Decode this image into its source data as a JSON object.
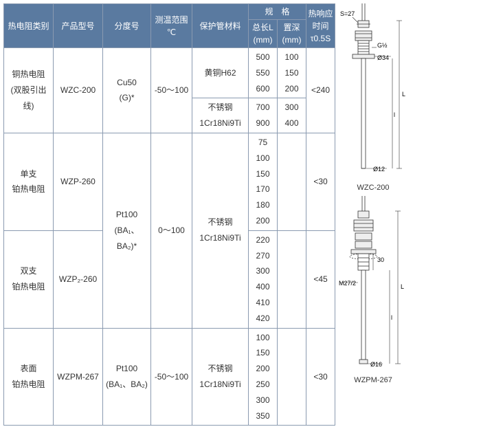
{
  "header": {
    "type": "热电阻类别",
    "model": "产品型号",
    "grade": "分度号",
    "range": "测温范围\n℃",
    "material": "保护管材料",
    "spec": "规　格",
    "len": "总长L\n(mm)",
    "depth": "置深\n(mm)",
    "time": "热响应\n时间\nτ0.5S"
  },
  "rows": [
    {
      "type": "铜热电阻\n(双股引出线)",
      "model": "WZC-200",
      "grade": "Cu50\n(G)*",
      "range": "-50～100",
      "matA": "黄铜H62",
      "lenA": "500\n550\n600",
      "depthA": "100\n150\n200",
      "matB": "不锈钢\n1Cr18Ni9Ti",
      "lenB": "700\n900",
      "depthB": "300\n400",
      "time": "<240"
    },
    {
      "type": "单支\n铂热电阻",
      "model": "WZP-260",
      "grade": "Pt100\n(BA₁、BA₂)*",
      "range": "0～100",
      "mat": "不锈钢\n1Cr18Ni9Ti",
      "len": "75\n100\n150\n170\n180\n200",
      "depth": "",
      "time": "<30"
    },
    {
      "type": "双支\n铂热电阻",
      "model": "WZP₂-260",
      "len": "220\n270\n300\n400\n410\n420",
      "depth": "",
      "time": "<45"
    },
    {
      "type": "表面\n铂热电阻",
      "model": "WZPM-267",
      "grade": "Pt100\n(BA₁、BA₂)",
      "range": "-50～100",
      "mat": "不锈钢\n1Cr18Ni9Ti",
      "len": "100\n150\n200\n250\n300\n350",
      "depth": "",
      "time": "<30"
    }
  ],
  "diagram": {
    "s27": "S=27",
    "g12": "G½",
    "d34": "Ø34",
    "d12": "Ø12",
    "label1": "WZC-200",
    "m27": "M27/2",
    "d16": "Ø16",
    "dim30": "30",
    "label2": "WZPM-267"
  }
}
